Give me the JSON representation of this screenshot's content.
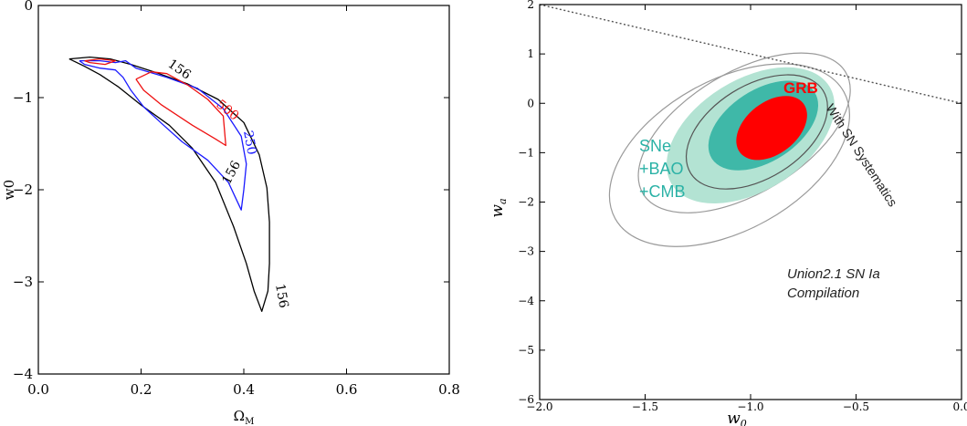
{
  "chart_data": [
    {
      "type": "contour",
      "xlabel": "Ω",
      "xlabel_sub": "M",
      "ylabel": "w0",
      "xlim": [
        0.0,
        0.8
      ],
      "ylim": [
        -4,
        0
      ],
      "xticks": [
        0.0,
        0.2,
        0.4,
        0.6,
        0.8
      ],
      "xtick_labels": [
        "0.0",
        "0.2",
        "0.4",
        "0.6",
        "0.8"
      ],
      "yticks": [
        0,
        -1,
        -2,
        -3,
        -4
      ],
      "ytick_labels": [
        "0",
        "−1",
        "−2",
        "−3",
        "−4"
      ],
      "contours": [
        {
          "level_label": "156",
          "color": "#000000",
          "points": [
            [
              0.06,
              -0.58
            ],
            [
              0.1,
              -0.56
            ],
            [
              0.14,
              -0.58
            ],
            [
              0.18,
              -0.64
            ],
            [
              0.23,
              -0.73
            ],
            [
              0.29,
              -0.85
            ],
            [
              0.35,
              -1.02
            ],
            [
              0.4,
              -1.27
            ],
            [
              0.43,
              -1.62
            ],
            [
              0.445,
              -1.98
            ],
            [
              0.45,
              -2.35
            ],
            [
              0.45,
              -2.8
            ],
            [
              0.447,
              -3.1
            ],
            [
              0.435,
              -3.32
            ],
            [
              0.42,
              -3.1
            ],
            [
              0.405,
              -2.8
            ],
            [
              0.38,
              -2.4
            ],
            [
              0.345,
              -1.92
            ],
            [
              0.3,
              -1.55
            ],
            [
              0.255,
              -1.3
            ],
            [
              0.2,
              -1.08
            ],
            [
              0.155,
              -0.88
            ],
            [
              0.12,
              -0.75
            ],
            [
              0.09,
              -0.66
            ],
            [
              0.06,
              -0.58
            ]
          ]
        },
        {
          "level_label": "250",
          "color": "#1a1aff",
          "points": [
            [
              0.08,
              -0.6
            ],
            [
              0.12,
              -0.6
            ],
            [
              0.15,
              -0.62
            ],
            [
              0.17,
              -0.6
            ],
            [
              0.19,
              -0.68
            ],
            [
              0.25,
              -0.78
            ],
            [
              0.31,
              -0.9
            ],
            [
              0.36,
              -1.12
            ],
            [
              0.395,
              -1.42
            ],
            [
              0.405,
              -1.72
            ],
            [
              0.4,
              -2.0
            ],
            [
              0.395,
              -2.22
            ],
            [
              0.37,
              -1.92
            ],
            [
              0.33,
              -1.68
            ],
            [
              0.28,
              -1.48
            ],
            [
              0.24,
              -1.28
            ],
            [
              0.205,
              -1.1
            ],
            [
              0.18,
              -0.92
            ],
            [
              0.165,
              -0.78
            ],
            [
              0.15,
              -0.7
            ],
            [
              0.12,
              -0.68
            ],
            [
              0.09,
              -0.64
            ],
            [
              0.08,
              -0.6
            ]
          ]
        },
        {
          "level_label": "500",
          "color": "#ee1111",
          "points": [
            [
              0.19,
              -0.8
            ],
            [
              0.22,
              -0.72
            ],
            [
              0.25,
              -0.74
            ],
            [
              0.29,
              -0.86
            ],
            [
              0.33,
              -1.02
            ],
            [
              0.36,
              -1.2
            ],
            [
              0.365,
              -1.52
            ],
            [
              0.345,
              -1.45
            ],
            [
              0.3,
              -1.3
            ],
            [
              0.24,
              -1.08
            ],
            [
              0.205,
              -0.92
            ],
            [
              0.19,
              -0.8
            ]
          ]
        },
        {
          "level_label": "",
          "color": "#ee1111",
          "points": [
            [
              0.09,
              -0.6
            ],
            [
              0.12,
              -0.58
            ],
            [
              0.15,
              -0.6
            ],
            [
              0.13,
              -0.64
            ],
            [
              0.1,
              -0.62
            ],
            [
              0.09,
              -0.6
            ]
          ]
        }
      ]
    },
    {
      "type": "contour",
      "xlabel": "w",
      "xlabel_sub": "0",
      "ylabel": "w",
      "ylabel_sub": "a",
      "xlim": [
        -2.0,
        0.0
      ],
      "ylim": [
        -6,
        2
      ],
      "xticks": [
        -2.0,
        -1.5,
        -1.0,
        -0.5,
        0.0
      ],
      "xtick_labels": [
        "−2.0",
        "−1.5",
        "−1.0",
        "−0.5",
        "0.0"
      ],
      "yticks": [
        2,
        1,
        0,
        -1,
        -2,
        -3,
        -4,
        -5,
        -6
      ],
      "ytick_labels": [
        "2",
        "1",
        "0",
        "−1",
        "−2",
        "−3",
        "−4",
        "−5",
        "−6"
      ],
      "boundary_line": [
        [
          -2.0,
          2.0
        ],
        [
          0.0,
          0.0
        ]
      ],
      "regions": [
        {
          "label": "Union2.1 SN Ia Compilation",
          "fill": "none",
          "stroke": "#9a9a9a",
          "center": [
            -1.1,
            -1.05
          ],
          "rx": 0.62,
          "ry": 3.05,
          "angle_deg": -29
        },
        {
          "label": "With SN Systematics",
          "fill": "none",
          "stroke": "#9a9a9a",
          "center": [
            -1.03,
            -0.6
          ],
          "rx": 0.56,
          "ry": 2.45,
          "angle_deg": -31
        },
        {
          "label": "SNe +BAO +CMB (outer)",
          "fill": "#b3e3d3",
          "stroke": "none",
          "center": [
            -1.0,
            -0.65
          ],
          "rx": 0.44,
          "ry": 2.25,
          "angle_deg": -32
        },
        {
          "label": "",
          "fill": "none",
          "stroke": "#555555",
          "center": [
            -0.97,
            -0.58
          ],
          "rx": 0.37,
          "ry": 1.88,
          "angle_deg": -32
        },
        {
          "label": "SNe +BAO +CMB (inner)",
          "fill": "#3fb8a8",
          "stroke": "none",
          "center": [
            -0.94,
            -0.45
          ],
          "rx": 0.29,
          "ry": 1.45,
          "angle_deg": -33
        },
        {
          "label": "GRB",
          "fill": "#ff0000",
          "stroke": "none",
          "center": [
            -0.9,
            -0.5
          ],
          "rx": 0.19,
          "ry": 1.05,
          "angle_deg": -38
        }
      ],
      "annotations": {
        "grb": "GRB",
        "sne": [
          "SNe",
          "+BAO",
          "+CMB"
        ],
        "systematics": "With SN Systematics",
        "union": [
          "Union2.1 SN Ia",
          "Compilation"
        ]
      },
      "colors": {
        "grb": "#ff0000",
        "sne_text": "#2bb2a6"
      }
    }
  ]
}
